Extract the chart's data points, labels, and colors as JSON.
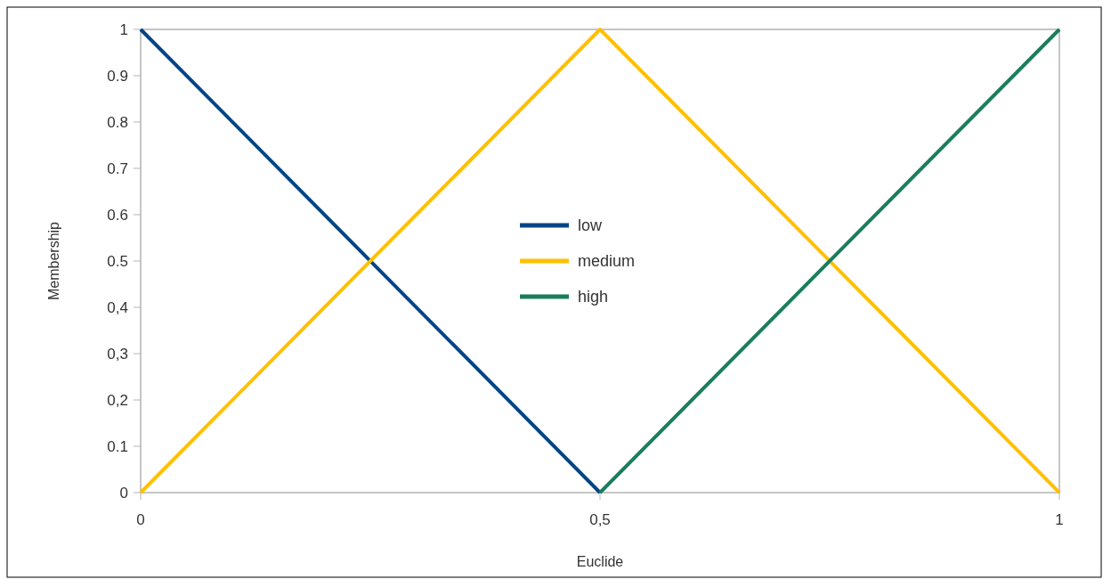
{
  "chart_data": {
    "type": "line",
    "xlabel": "Euclide",
    "ylabel": "Membership",
    "xlim": [
      0,
      1
    ],
    "xticks": [
      0,
      {
        "value": 0.5,
        "label": "0,5"
      },
      1
    ],
    "ylim": [
      0,
      1
    ],
    "yticks": [
      0,
      0.1,
      {
        "value": 0.2,
        "label": "0,2"
      },
      {
        "value": 0.3,
        "label": "0,3"
      },
      {
        "value": 0.4,
        "label": "0,4"
      },
      0.5,
      0.6,
      0.7,
      0.8,
      0.9,
      1
    ],
    "grid": false,
    "legend": "center",
    "marker": "none",
    "line_style": "solid",
    "series": [
      {
        "name": "low",
        "color": "#004586",
        "x": [
          0,
          0.5
        ],
        "values": [
          1,
          0
        ]
      },
      {
        "name": "medium",
        "color": "#ffc000",
        "x": [
          0,
          0.5,
          1
        ],
        "values": [
          0,
          1,
          0
        ]
      },
      {
        "name": "high",
        "color": "#1b7d5c",
        "x": [
          0.5,
          1
        ],
        "values": [
          0,
          1
        ]
      }
    ]
  }
}
